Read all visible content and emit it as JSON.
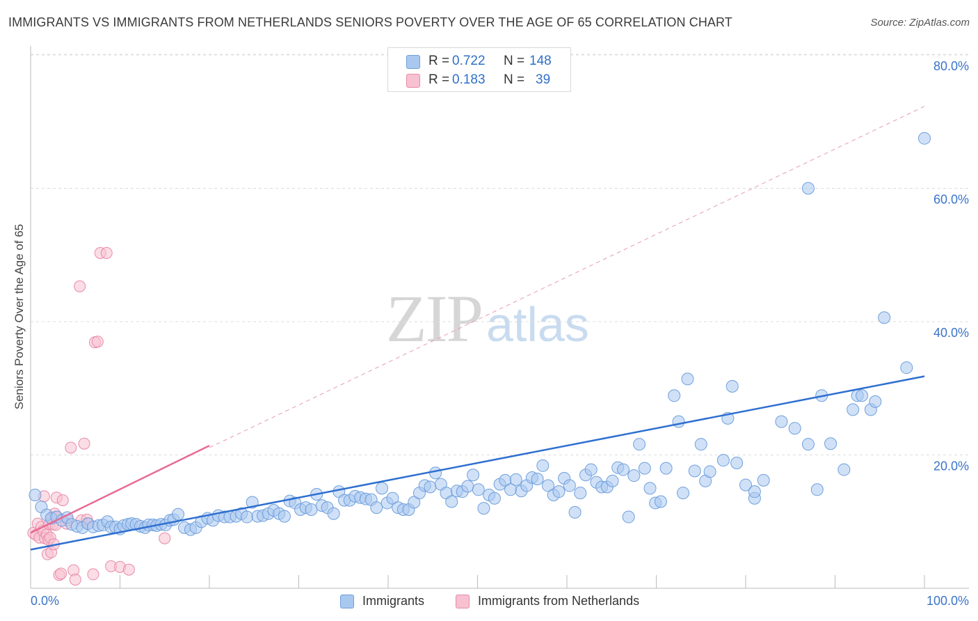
{
  "title": "IMMIGRANTS VS IMMIGRANTS FROM NETHERLANDS SENIORS POVERTY OVER THE AGE OF 65 CORRELATION CHART",
  "source": "Source: ZipAtlas.com",
  "watermark": {
    "zip": "ZIP",
    "atlas": "atlas"
  },
  "legend_top": [
    {
      "r_label": "R =",
      "r_value": "0.722",
      "n_label": "N =",
      "n_value": "148",
      "color": "#a9c8f0",
      "border": "#6f9fdc",
      "text_color": "#2f6fc9"
    },
    {
      "r_label": "R =",
      "r_value": "0.183",
      "n_label": "N =",
      "n_value": "39",
      "color": "#f7c1d2",
      "border": "#e88aa8",
      "text_color": "#2f6fc9"
    }
  ],
  "legend_bottom": [
    {
      "label": "Immigrants",
      "color": "#a9c8f0",
      "border": "#6f9fdc"
    },
    {
      "label": "Immigrants from Netherlands",
      "color": "#f7c1d2",
      "border": "#e88aa8"
    }
  ],
  "chart_data": {
    "type": "scatter",
    "title": "IMMIGRANTS VS IMMIGRANTS FROM NETHERLANDS SENIORS POVERTY OVER THE AGE OF 65 CORRELATION CHART",
    "xlabel": "",
    "ylabel": "Seniors Poverty Over the Age of 65",
    "xlim": [
      0,
      105
    ],
    "ylim": [
      0,
      84
    ],
    "x_tick_labels": [
      {
        "value": 0,
        "label": "0.0%"
      },
      {
        "value": 100,
        "label": "100.0%"
      }
    ],
    "y_tick_labels": [
      {
        "value": 20,
        "label": "20.0%"
      },
      {
        "value": 40,
        "label": "40.0%"
      },
      {
        "value": 60,
        "label": "60.0%"
      },
      {
        "value": 80,
        "label": "80.0%"
      }
    ],
    "x_minor_ticks": [
      0,
      10,
      20,
      30,
      40,
      50,
      60,
      70,
      80,
      90,
      100
    ],
    "grid": true,
    "legend_position": "bottom",
    "series": [
      {
        "name": "Immigrants",
        "color": "#a9c8f0",
        "stroke": "#6f9fdc",
        "trend": {
          "x": [
            0,
            100
          ],
          "y": [
            5.8,
            31.8
          ],
          "color": "#2f6fd0",
          "style": "solid"
        },
        "points": [
          [
            0.5,
            14
          ],
          [
            1.2,
            12.2
          ],
          [
            1.8,
            11
          ],
          [
            2.3,
            10.5
          ],
          [
            2.9,
            10.7
          ],
          [
            3.5,
            10.2
          ],
          [
            4.1,
            10.6
          ],
          [
            4.6,
            9.6
          ],
          [
            5.2,
            9.3
          ],
          [
            5.8,
            9.1
          ],
          [
            6.4,
            9.7
          ],
          [
            7.0,
            9.2
          ],
          [
            7.6,
            9.4
          ],
          [
            8.1,
            9.5
          ],
          [
            8.6,
            10
          ],
          [
            9.0,
            9.2
          ],
          [
            9.5,
            9.2
          ],
          [
            10.0,
            8.9
          ],
          [
            10.4,
            9.4
          ],
          [
            10.9,
            9.6
          ],
          [
            11.3,
            9.7
          ],
          [
            11.8,
            9.6
          ],
          [
            12.3,
            9.3
          ],
          [
            12.8,
            9.1
          ],
          [
            13.2,
            9.5
          ],
          [
            13.7,
            9.5
          ],
          [
            14.1,
            9.4
          ],
          [
            14.6,
            9.6
          ],
          [
            15.1,
            9.5
          ],
          [
            15.6,
            10.2
          ],
          [
            16.0,
            10.3
          ],
          [
            16.5,
            11.1
          ],
          [
            17.2,
            9.1
          ],
          [
            17.9,
            8.8
          ],
          [
            18.5,
            9.1
          ],
          [
            19.1,
            10
          ],
          [
            19.8,
            10.5
          ],
          [
            20.4,
            10.2
          ],
          [
            21.0,
            10.9
          ],
          [
            21.7,
            10.7
          ],
          [
            22.3,
            10.7
          ],
          [
            23.0,
            10.8
          ],
          [
            23.6,
            11.2
          ],
          [
            24.2,
            10.7
          ],
          [
            24.8,
            12.9
          ],
          [
            25.4,
            10.8
          ],
          [
            26.0,
            10.9
          ],
          [
            26.6,
            11.2
          ],
          [
            27.2,
            11.7
          ],
          [
            27.8,
            11.2
          ],
          [
            28.4,
            10.8
          ],
          [
            29.0,
            13.1
          ],
          [
            29.6,
            12.8
          ],
          [
            30.2,
            11.8
          ],
          [
            30.8,
            12.1
          ],
          [
            31.4,
            11.8
          ],
          [
            32.0,
            14.1
          ],
          [
            32.6,
            12.4
          ],
          [
            33.2,
            12.1
          ],
          [
            33.9,
            11.2
          ],
          [
            34.5,
            14.5
          ],
          [
            35.1,
            13.2
          ],
          [
            35.7,
            13.2
          ],
          [
            36.3,
            13.8
          ],
          [
            36.9,
            13.6
          ],
          [
            37.5,
            13.4
          ],
          [
            38.1,
            13.3
          ],
          [
            38.7,
            12.1
          ],
          [
            39.3,
            15
          ],
          [
            39.9,
            12.8
          ],
          [
            40.5,
            13.5
          ],
          [
            41.1,
            12.1
          ],
          [
            41.7,
            11.8
          ],
          [
            42.3,
            11.8
          ],
          [
            42.9,
            12.9
          ],
          [
            43.5,
            14.3
          ],
          [
            44.1,
            15.4
          ],
          [
            44.7,
            15.2
          ],
          [
            45.3,
            17.3
          ],
          [
            45.9,
            15.6
          ],
          [
            46.5,
            14.3
          ],
          [
            47.1,
            13
          ],
          [
            47.7,
            14.6
          ],
          [
            48.3,
            14.5
          ],
          [
            48.9,
            15.3
          ],
          [
            49.5,
            17
          ],
          [
            50.1,
            14.8
          ],
          [
            50.7,
            12
          ],
          [
            51.3,
            14
          ],
          [
            51.9,
            13.5
          ],
          [
            52.5,
            15.6
          ],
          [
            53.1,
            16.2
          ],
          [
            53.7,
            14.8
          ],
          [
            54.3,
            16.3
          ],
          [
            54.9,
            14.6
          ],
          [
            55.5,
            15.4
          ],
          [
            56.1,
            16.6
          ],
          [
            56.7,
            16.4
          ],
          [
            57.3,
            18.4
          ],
          [
            57.9,
            15.4
          ],
          [
            58.5,
            14
          ],
          [
            59.1,
            14.5
          ],
          [
            59.7,
            16.5
          ],
          [
            60.3,
            15.4
          ],
          [
            60.9,
            11.4
          ],
          [
            61.5,
            14.3
          ],
          [
            62.1,
            17
          ],
          [
            62.7,
            17.8
          ],
          [
            63.3,
            15.9
          ],
          [
            63.9,
            15.2
          ],
          [
            64.5,
            15.2
          ],
          [
            65.1,
            16.1
          ],
          [
            65.7,
            18.1
          ],
          [
            66.3,
            17.8
          ],
          [
            66.9,
            10.7
          ],
          [
            67.5,
            16.9
          ],
          [
            68.1,
            21.6
          ],
          [
            68.7,
            18
          ],
          [
            69.3,
            15
          ],
          [
            69.9,
            12.8
          ],
          [
            70.5,
            13
          ],
          [
            71.1,
            18
          ],
          [
            72.0,
            28.9
          ],
          [
            72.5,
            25
          ],
          [
            73.0,
            14.3
          ],
          [
            73.5,
            31.4
          ],
          [
            74.3,
            17.6
          ],
          [
            75.0,
            21.6
          ],
          [
            75.5,
            16.1
          ],
          [
            76.0,
            17.5
          ],
          [
            77.5,
            19.2
          ],
          [
            78.0,
            25.5
          ],
          [
            78.5,
            30.3
          ],
          [
            79.0,
            18.8
          ],
          [
            80.0,
            15.5
          ],
          [
            81.0,
            13.5
          ],
          [
            81.0,
            14.5
          ],
          [
            82.0,
            16.2
          ],
          [
            84.0,
            25
          ],
          [
            85.5,
            24
          ],
          [
            87.0,
            21.6
          ],
          [
            87.0,
            60
          ],
          [
            88.0,
            14.8
          ],
          [
            88.5,
            28.9
          ],
          [
            89.5,
            21.7
          ],
          [
            91.0,
            17.8
          ],
          [
            92.0,
            26.8
          ],
          [
            92.5,
            28.9
          ],
          [
            93.0,
            28.9
          ],
          [
            94.0,
            26.8
          ],
          [
            94.5,
            28
          ],
          [
            95.5,
            40.6
          ],
          [
            98.0,
            33.1
          ],
          [
            100.0,
            67.5
          ]
        ]
      },
      {
        "name": "Immigrants from Netherlands",
        "color": "#f7c1d2",
        "stroke": "#e88aa8",
        "trend": {
          "x": [
            0,
            20
          ],
          "y": [
            8.3,
            21.4
          ],
          "color": "#e86a92",
          "style": "solid"
        },
        "trend_extended": {
          "x": [
            0,
            100
          ],
          "y": [
            8.3,
            72.3
          ],
          "color": "#e89ab3",
          "style": "dashed"
        },
        "points": [
          [
            0.3,
            8.3
          ],
          [
            0.6,
            8.0
          ],
          [
            0.8,
            9.7
          ],
          [
            1.0,
            7.6
          ],
          [
            1.2,
            9.2
          ],
          [
            1.4,
            8.6
          ],
          [
            1.5,
            13.8
          ],
          [
            1.6,
            7.5
          ],
          [
            1.8,
            8.1
          ],
          [
            1.9,
            5.1
          ],
          [
            2.0,
            7.3
          ],
          [
            2.1,
            9.6
          ],
          [
            2.2,
            7.6
          ],
          [
            2.3,
            5.4
          ],
          [
            2.4,
            10.5
          ],
          [
            2.5,
            9.6
          ],
          [
            2.6,
            6.6
          ],
          [
            2.7,
            11.2
          ],
          [
            2.8,
            9.5
          ],
          [
            2.9,
            13.6
          ],
          [
            3.0,
            10.7
          ],
          [
            3.2,
            2.0
          ],
          [
            3.4,
            2.2
          ],
          [
            3.6,
            13.2
          ],
          [
            4.0,
            9.7
          ],
          [
            4.2,
            10.2
          ],
          [
            4.5,
            21.1
          ],
          [
            4.8,
            2.7
          ],
          [
            5.0,
            1.3
          ],
          [
            5.5,
            45.3
          ],
          [
            5.7,
            10.2
          ],
          [
            6.0,
            21.7
          ],
          [
            6.3,
            10.3
          ],
          [
            6.5,
            9.7
          ],
          [
            7.0,
            2.1
          ],
          [
            7.2,
            36.9
          ],
          [
            7.5,
            37
          ],
          [
            7.8,
            50.3
          ],
          [
            8.5,
            50.3
          ],
          [
            9.0,
            3.3
          ],
          [
            10.0,
            3.2
          ],
          [
            11.0,
            2.8
          ],
          [
            15.0,
            7.5
          ]
        ]
      }
    ]
  }
}
